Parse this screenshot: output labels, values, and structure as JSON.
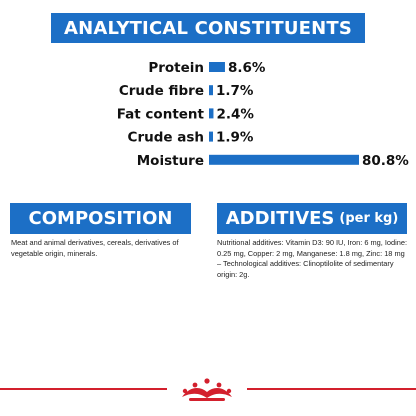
{
  "analytical": {
    "title": "ANALYTICAL CONSTITUENTS"
  },
  "chart_data": {
    "type": "bar",
    "orientation": "horizontal",
    "title": "ANALYTICAL CONSTITUENTS",
    "categories": [
      "Protein",
      "Crude fibre",
      "Fat content",
      "Crude ash",
      "Moisture"
    ],
    "values": [
      8.6,
      1.7,
      2.4,
      1.9,
      80.8
    ],
    "value_labels": [
      "8.6%",
      "1.7%",
      "2.4%",
      "1.9%",
      "80.8%"
    ],
    "unit": "%",
    "xlim": [
      0,
      80.8
    ],
    "grid": false,
    "legend": "none",
    "bar_color": "#1c6fc6"
  },
  "composition": {
    "title": "COMPOSITION",
    "text": "Meat and animal derivatives, cereals, derivatives of vegetable origin, minerals."
  },
  "additives": {
    "title": "ADDITIVES",
    "unit": "(per kg)",
    "text": "Nutritional additives: Vitamin D3: 90 IU, Iron: 6 mg, Iodine: 0.25 mg, Copper: 2 mg, Manganese: 1.8 mg, Zinc: 18 mg – Technological additives: Clinoptilolite of sedimentary origin: 2g."
  },
  "colors": {
    "accent_blue": "#1c6fc6",
    "brand_red": "#d3202d"
  },
  "brand": {
    "logo_icon": "crown-logo-icon"
  }
}
